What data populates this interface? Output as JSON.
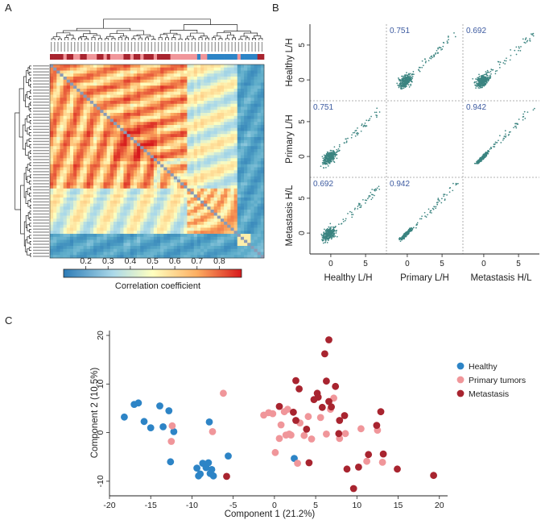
{
  "panels": {
    "a": "A",
    "b": "B",
    "c": "C"
  },
  "colors": {
    "healthy": "#2d84c6",
    "primary": "#f0969a",
    "metastasis": "#a8242f",
    "scatter_point": "#3b8480",
    "corr_text": "#3c5aa0"
  },
  "chart_data": [
    {
      "type": "heatmap",
      "panel": "A",
      "description_hidden": false,
      "n_samples": 64,
      "sample_groups": [
        "Metastasis",
        "Healthy",
        "Primary tumors"
      ],
      "colorbar": {
        "label": "Correlation coefficient",
        "ticks": [
          "0.2",
          "0.3",
          "0.4",
          "0.5",
          "0.6",
          "0.7",
          "0.8"
        ],
        "range": [
          0.1,
          0.9
        ],
        "colors": [
          "#2c7bb6",
          "#abd9e9",
          "#ffffbf",
          "#fdae61",
          "#d7191c"
        ]
      }
    },
    {
      "type": "scatter",
      "panel": "B",
      "variables": [
        "Healthy L/H",
        "Primary L/H",
        "Metastasis H/L"
      ],
      "row_labels": [
        "Healthy L/H",
        "Primary L/H",
        "Metastasis H/L"
      ],
      "col_labels": [
        "Healthy L/H",
        "Primary L/H",
        "Metastasis H/L"
      ],
      "correlations": {
        "healthy_primary": "0.751",
        "healthy_metastasis": "0.692",
        "primary_metastasis": "0.942"
      },
      "y_ticks": [
        "5",
        "0"
      ],
      "x_ticks": [
        "0",
        "5"
      ],
      "axis_range": [
        -3,
        8
      ]
    },
    {
      "type": "scatter",
      "panel": "C",
      "xlabel": "Component 1 (21.2%)",
      "ylabel": "Component 2 (10.5%)",
      "xlim": [
        -20,
        21
      ],
      "ylim": [
        -13,
        21
      ],
      "x_ticks": [
        -20,
        -15,
        -10,
        -5,
        0,
        5,
        10,
        15,
        20
      ],
      "y_ticks": [
        -10,
        0,
        10,
        20
      ],
      "legend": [
        "Healthy",
        "Primary tumors",
        "Metastasis"
      ],
      "series": [
        {
          "name": "Healthy",
          "points": [
            [
              -18.2,
              3.2
            ],
            [
              -17,
              5.8
            ],
            [
              -16.5,
              6.1
            ],
            [
              -15.8,
              2.3
            ],
            [
              -15,
              1
            ],
            [
              -13.9,
              5.5
            ],
            [
              -13.5,
              1.2
            ],
            [
              -12.8,
              4.5
            ],
            [
              -12.2,
              0.2
            ],
            [
              -12.6,
              -6
            ],
            [
              -9.4,
              -7.3
            ],
            [
              -9.2,
              -8.9
            ],
            [
              -9,
              -8.5
            ],
            [
              -8.7,
              -6.3
            ],
            [
              -8.3,
              -7.2
            ],
            [
              -8,
              -6.2
            ],
            [
              -7.8,
              -8.4
            ],
            [
              -7.6,
              -7.6
            ],
            [
              -7.4,
              -8.9
            ],
            [
              -7.9,
              2.2
            ],
            [
              -5.6,
              -4.8
            ],
            [
              2.4,
              -5.3
            ]
          ]
        },
        {
          "name": "Primary tumors",
          "points": [
            [
              -12.4,
              1.4
            ],
            [
              -12.5,
              -1.8
            ],
            [
              -7.5,
              0.2
            ],
            [
              -6.2,
              8.1
            ],
            [
              -1.3,
              3.6
            ],
            [
              -0.7,
              4.1
            ],
            [
              -0.2,
              3.9
            ],
            [
              0.1,
              -4.1
            ],
            [
              0.6,
              -1.2
            ],
            [
              0.8,
              1.6
            ],
            [
              1.2,
              4.3
            ],
            [
              1.4,
              -0.5
            ],
            [
              1.6,
              4.8
            ],
            [
              1.8,
              -0.3
            ],
            [
              2,
              -0.5
            ],
            [
              2.8,
              -6.3
            ],
            [
              3.1,
              2
            ],
            [
              3.6,
              -0.6
            ],
            [
              4.1,
              3.3
            ],
            [
              4.5,
              -1.3
            ],
            [
              5.6,
              3.1
            ],
            [
              6.3,
              -0.3
            ],
            [
              6.8,
              4.8
            ],
            [
              7.2,
              7.1
            ],
            [
              7.9,
              -1.2
            ],
            [
              8.6,
              -0.2
            ],
            [
              10.5,
              0.8
            ],
            [
              11.2,
              -5.9
            ],
            [
              12.5,
              0.5
            ],
            [
              13.1,
              -6.1
            ]
          ]
        },
        {
          "name": "Metastasis",
          "points": [
            [
              -5.8,
              -9
            ],
            [
              0.6,
              5.4
            ],
            [
              2.3,
              4.2
            ],
            [
              2.6,
              10.7
            ],
            [
              3,
              9
            ],
            [
              4.2,
              -6.2
            ],
            [
              4.8,
              6.8
            ],
            [
              5.3,
              7.3
            ],
            [
              5.8,
              5.2
            ],
            [
              6.1,
              16.2
            ],
            [
              6.3,
              10.6
            ],
            [
              6.6,
              6.4
            ],
            [
              6.9,
              5.3
            ],
            [
              7.4,
              9.5
            ],
            [
              7.9,
              2.5
            ],
            [
              8.5,
              3.5
            ],
            [
              8.8,
              -7.5
            ],
            [
              9.6,
              -11.5
            ],
            [
              10.2,
              -7.1
            ],
            [
              11.4,
              -4.5
            ],
            [
              12.4,
              1.5
            ],
            [
              12.9,
              4.3
            ],
            [
              13.2,
              -4.4
            ],
            [
              14.9,
              -7.5
            ],
            [
              19.3,
              -8.8
            ],
            [
              6.6,
              19.1
            ],
            [
              5.2,
              8.1
            ],
            [
              7.8,
              -0.2
            ],
            [
              2.6,
              2.5
            ],
            [
              3.9,
              0.7
            ]
          ]
        }
      ]
    }
  ]
}
